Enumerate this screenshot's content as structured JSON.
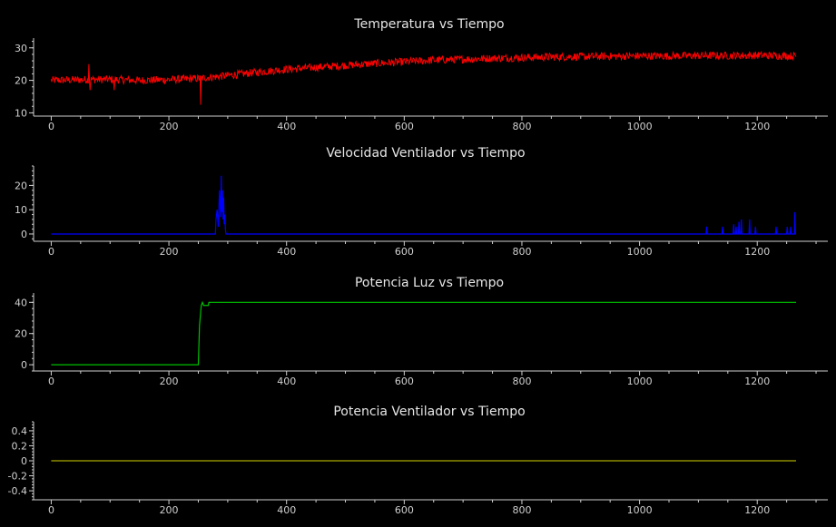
{
  "chart_data": [
    {
      "type": "line",
      "title": "Temperatura vs Tiempo",
      "xlabel": "",
      "ylabel": "",
      "xlim": [
        -30,
        1320
      ],
      "ylim": [
        9,
        33
      ],
      "xticks": [
        0,
        200,
        400,
        600,
        800,
        1000,
        1200
      ],
      "yticks": [
        10,
        20,
        30
      ],
      "grid": false,
      "series": [
        {
          "color": "#ff0000",
          "x": [
            0,
            50,
            100,
            150,
            200,
            250,
            300,
            350,
            400,
            450,
            500,
            550,
            600,
            650,
            700,
            750,
            800,
            850,
            900,
            950,
            1000,
            1050,
            1100,
            1150,
            1200,
            1266
          ],
          "values": [
            20,
            20.2,
            20.3,
            20,
            20.2,
            20.6,
            21.5,
            22.5,
            23.4,
            24,
            24.6,
            25.2,
            25.7,
            26.2,
            26.5,
            26.8,
            27,
            27.2,
            27.3,
            27.4,
            27.5,
            27.5,
            27.6,
            27.6,
            27.7,
            27.5
          ],
          "noise": 1.2,
          "spikes": [
            [
              64,
              25
            ],
            [
              66,
              17
            ],
            [
              107,
              17
            ],
            [
              254,
              12.5
            ]
          ]
        }
      ]
    },
    {
      "type": "line",
      "title": "Velocidad Ventilador vs Tiempo",
      "xlabel": "",
      "ylabel": "",
      "xlim": [
        -30,
        1320
      ],
      "ylim": [
        -3,
        28
      ],
      "xticks": [
        0,
        200,
        400,
        600,
        800,
        1000,
        1200
      ],
      "yticks": [
        0,
        10,
        20
      ],
      "grid": false,
      "series": [
        {
          "color": "#0000ff",
          "x": [
            0,
            279,
            280,
            282,
            284,
            286,
            288,
            289,
            290,
            291,
            292,
            293,
            294,
            295,
            296,
            297,
            1113,
            1114,
            1115,
            1140,
            1141,
            1142,
            1159,
            1160,
            1161,
            1163,
            1164,
            1165,
            1168,
            1169,
            1170,
            1172,
            1173,
            1174,
            1186,
            1187,
            1188,
            1196,
            1197,
            1198,
            1231,
            1232,
            1233,
            1250,
            1251,
            1252,
            1256,
            1257,
            1258,
            1263,
            1264,
            1265,
            1266
          ],
          "values": [
            0,
            0,
            6,
            10,
            3,
            18,
            7,
            24,
            9,
            18,
            6,
            15,
            4,
            8,
            2,
            0,
            0,
            3,
            0,
            0,
            3,
            0,
            0,
            4,
            0,
            0,
            3,
            0,
            0,
            5,
            0,
            0,
            6,
            0,
            0,
            6,
            0,
            0,
            3,
            0,
            0,
            3,
            0,
            0,
            3,
            0,
            0,
            3,
            0,
            0,
            9,
            0,
            0
          ]
        }
      ]
    },
    {
      "type": "line",
      "title": "Potencia Luz vs Tiempo",
      "xlabel": "",
      "ylabel": "",
      "xlim": [
        -30,
        1320
      ],
      "ylim": [
        -4,
        46
      ],
      "xticks": [
        0,
        200,
        400,
        600,
        800,
        1000,
        1200
      ],
      "yticks": [
        0,
        20,
        40
      ],
      "grid": false,
      "series": [
        {
          "color": "#00c000",
          "x": [
            0,
            250,
            252,
            255,
            257,
            259,
            262,
            267,
            268,
            270,
            1266
          ],
          "values": [
            0,
            0,
            25,
            38,
            40,
            38,
            38,
            38,
            40,
            40,
            40
          ]
        }
      ]
    },
    {
      "type": "line",
      "title": "Potencia Ventilador vs Tiempo",
      "xlabel": "",
      "ylabel": "",
      "xlim": [
        -30,
        1320
      ],
      "ylim": [
        -0.52,
        0.52
      ],
      "xticks": [
        0,
        200,
        400,
        600,
        800,
        1000,
        1200
      ],
      "yticks": [
        -0.4,
        -0.2,
        0,
        0.2,
        0.4
      ],
      "ytick_labels": [
        "-0.4",
        "-0.2",
        "0",
        "0.2",
        "0.4"
      ],
      "grid": false,
      "series": [
        {
          "color": "#a8a800",
          "x": [
            0,
            1266
          ],
          "values": [
            0,
            0
          ]
        }
      ]
    }
  ]
}
